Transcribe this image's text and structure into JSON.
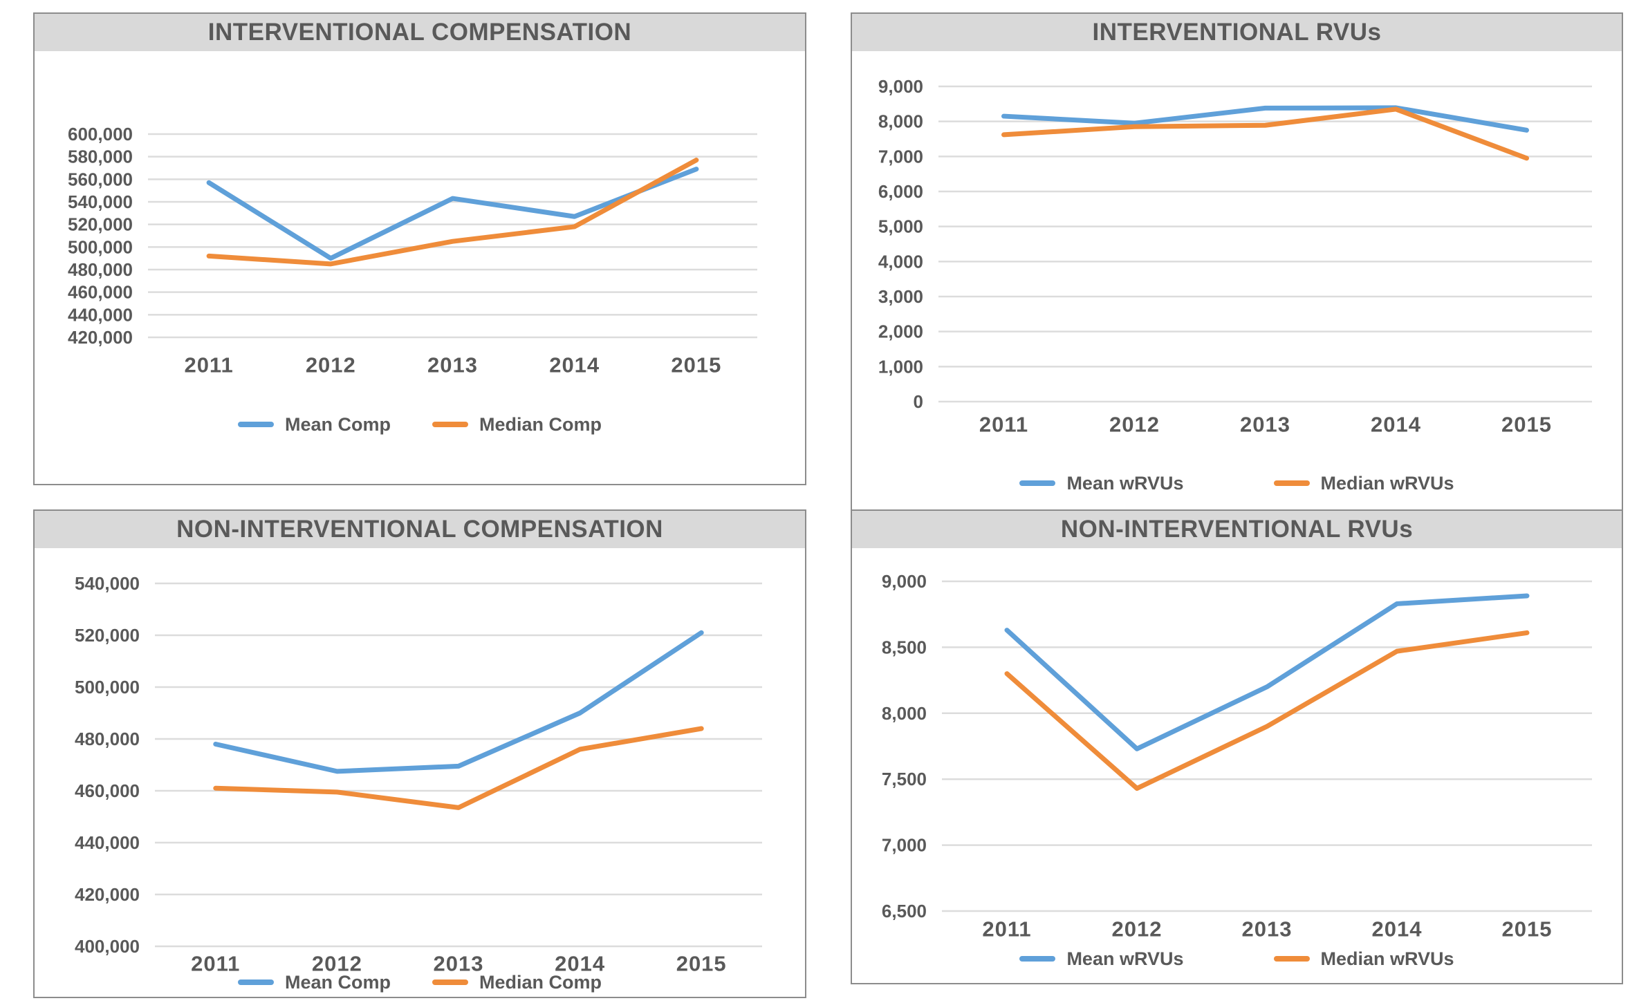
{
  "colors": {
    "mean_line": "#5FA0D9",
    "median_line": "#EF8C3A",
    "title_bar_bg": "#D9D9D9",
    "title_text": "#595959",
    "axis_text": "#595959",
    "gridline": "#DCDCDC",
    "panel_border": "#8C8C8C",
    "background": "#FFFFFF"
  },
  "chart_data": [
    {
      "type": "line",
      "title": "INTERVENTIONAL COMPENSATION",
      "categories": [
        "2011",
        "2012",
        "2013",
        "2014",
        "2015"
      ],
      "series": [
        {
          "name": "Mean Comp",
          "color": "#5FA0D9",
          "values": [
            557000,
            490000,
            543000,
            527000,
            569000
          ]
        },
        {
          "name": "Median Comp",
          "color": "#EF8C3A",
          "values": [
            492000,
            485000,
            505000,
            518000,
            577000
          ]
        }
      ],
      "y_ticks": [
        600000,
        580000,
        560000,
        540000,
        520000,
        500000,
        480000,
        460000,
        440000,
        420000
      ],
      "ylim": [
        420000,
        675000
      ],
      "xlabel": "",
      "ylabel": "",
      "grid": "horizontal",
      "legend_position": "bottom"
    },
    {
      "type": "line",
      "title": "INTERVENTIONAL RVUs",
      "categories": [
        "2011",
        "2012",
        "2013",
        "2014",
        "2015"
      ],
      "series": [
        {
          "name": "Mean wRVUs",
          "color": "#5FA0D9",
          "values": [
            8150,
            7950,
            8380,
            8390,
            7750
          ]
        },
        {
          "name": "Median wRVUs",
          "color": "#EF8C3A",
          "values": [
            7620,
            7850,
            7890,
            8350,
            6950
          ]
        }
      ],
      "y_ticks": [
        9000,
        8000,
        7000,
        6000,
        5000,
        4000,
        3000,
        2000,
        1000,
        0
      ],
      "ylim": [
        0,
        9600
      ],
      "xlabel": "",
      "ylabel": "",
      "grid": "horizontal",
      "legend_position": "bottom"
    },
    {
      "type": "line",
      "title": "NON-INTERVENTIONAL COMPENSATION",
      "categories": [
        "2011",
        "2012",
        "2013",
        "2014",
        "2015"
      ],
      "series": [
        {
          "name": "Mean Comp",
          "color": "#5FA0D9",
          "values": [
            478000,
            467500,
            469500,
            490000,
            521000
          ]
        },
        {
          "name": "Median Comp",
          "color": "#EF8C3A",
          "values": [
            461000,
            459500,
            453500,
            476000,
            484000
          ]
        }
      ],
      "y_ticks": [
        540000,
        520000,
        500000,
        480000,
        460000,
        440000,
        420000,
        400000
      ],
      "ylim": [
        400000,
        555000
      ],
      "xlabel": "",
      "ylabel": "",
      "grid": "horizontal",
      "legend_position": "bottom"
    },
    {
      "type": "line",
      "title": "NON-INTERVENTIONAL RVUs",
      "categories": [
        "2011",
        "2012",
        "2013",
        "2014",
        "2015"
      ],
      "series": [
        {
          "name": "Mean wRVUs",
          "color": "#5FA0D9",
          "values": [
            8630,
            7730,
            8200,
            8830,
            8890
          ]
        },
        {
          "name": "Median wRVUs",
          "color": "#EF8C3A",
          "values": [
            8300,
            7430,
            7900,
            8470,
            8610
          ]
        }
      ],
      "y_ticks": [
        9000,
        8500,
        8000,
        7500,
        7000,
        6500
      ],
      "ylim": [
        6500,
        9250
      ],
      "xlabel": "",
      "ylabel": "",
      "grid": "horizontal",
      "legend_position": "bottom"
    }
  ]
}
